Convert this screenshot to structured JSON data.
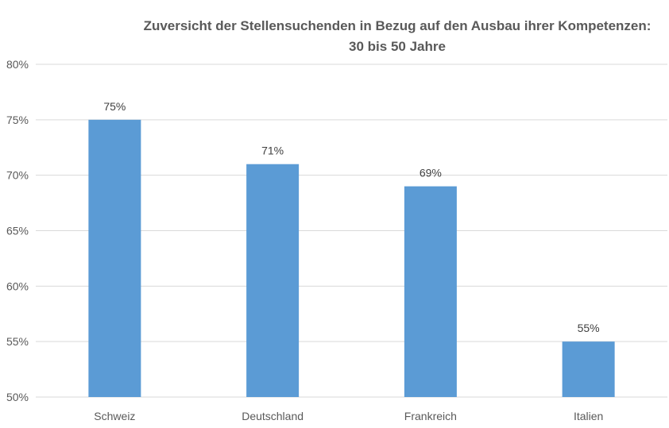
{
  "chart_data": {
    "type": "bar",
    "title_lines": [
      "Zuversicht der Stellensuchenden in Bezug auf den Ausbau ihrer Kompetenzen:",
      "30 bis 50 Jahre"
    ],
    "categories": [
      "Schweiz",
      "Deutschland",
      "Frankreich",
      "Italien"
    ],
    "values": [
      75,
      71,
      69,
      55
    ],
    "data_labels": [
      "75%",
      "71%",
      "69%",
      "55%"
    ],
    "ylim": [
      50,
      80
    ],
    "yticks": [
      50,
      55,
      60,
      65,
      70,
      75,
      80
    ],
    "ytick_labels": [
      "50%",
      "55%",
      "60%",
      "65%",
      "70%",
      "75%",
      "80%"
    ],
    "grid": true,
    "legend": "none",
    "bar_color": "#5B9BD5",
    "grid_color": "#D9D9D9"
  }
}
